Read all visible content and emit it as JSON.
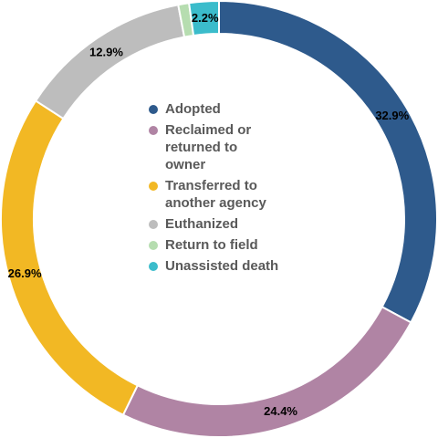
{
  "chart_data": {
    "type": "pie",
    "donut": true,
    "title": "",
    "categories": [
      "Adopted",
      "Reclaimed or returned to owner",
      "Transferred to another agency",
      "Euthanized",
      "Return to field",
      "Unassisted death"
    ],
    "legend_lines": [
      [
        "Adopted"
      ],
      [
        "Reclaimed or",
        "returned to",
        "owner"
      ],
      [
        "Transferred to",
        "another agency"
      ],
      [
        "Euthanized"
      ],
      [
        "Return to field"
      ],
      [
        "Unassisted death"
      ]
    ],
    "values": [
      32.9,
      24.4,
      26.9,
      12.9,
      0.8,
      2.2
    ],
    "data_labels": [
      "32.9%",
      "24.4%",
      "26.9%",
      "12.9%",
      "",
      "2.2%"
    ],
    "colors": [
      "#2e5a8c",
      "#b084a4",
      "#f2b824",
      "#bdbdbd",
      "#b6ddb0",
      "#3bbccb"
    ],
    "legend_position": "center"
  }
}
